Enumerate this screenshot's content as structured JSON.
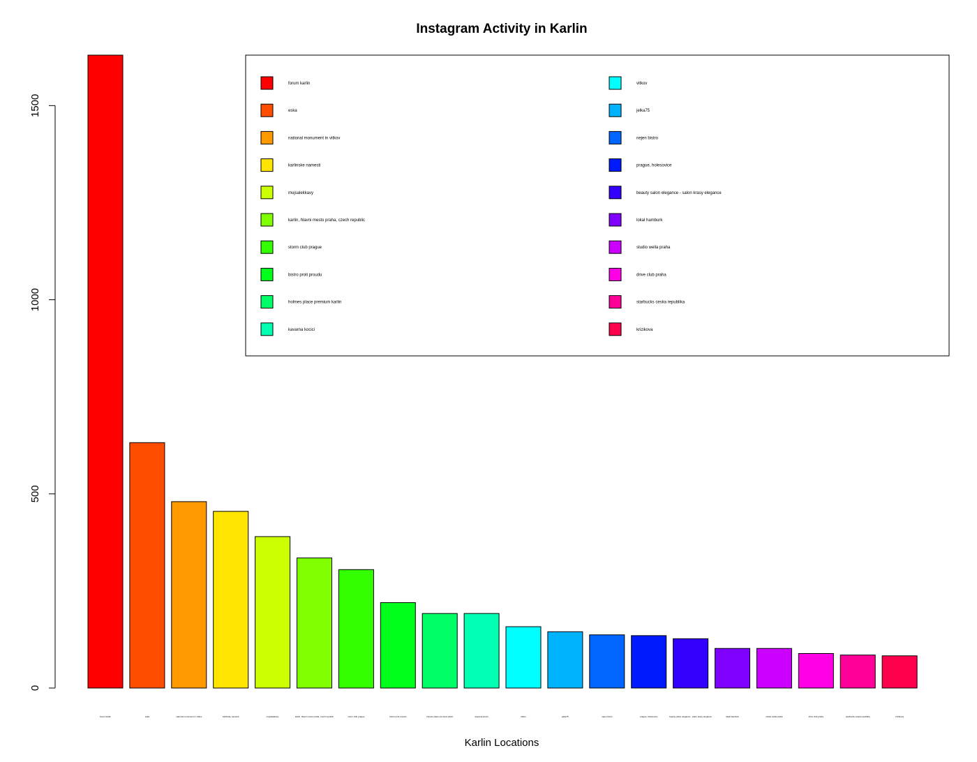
{
  "chart_data": {
    "type": "bar",
    "title": "Instagram Activity in Karlin",
    "xlabel": "Karlin Locations",
    "ylabel": "",
    "ylim": [
      0,
      1630
    ],
    "yticks": [
      0,
      500,
      1000,
      1500
    ],
    "grid": false,
    "legend_position": "top-right",
    "categories": [
      "forum karlin",
      "eska",
      "national monument in vitkov",
      "karlinske namesti",
      "mujsalekkavy",
      "karlin, hlavni mesto praha, czech republic",
      "storm club prague",
      "bistro proti proudu",
      "holmes place premium karlin",
      "kavarna kocici",
      "vitkov",
      "jelka75",
      "nejen bistro",
      "prague, holesovice",
      "beauty salon elegance - salon krasy elegance",
      "lokal hamburk",
      "studio wella praha",
      "drive club praha",
      "starbucks ceska republika",
      "krizikova"
    ],
    "values": [
      1630,
      632,
      480,
      455,
      390,
      335,
      305,
      220,
      192,
      192,
      158,
      145,
      137,
      135,
      127,
      102,
      102,
      89,
      85,
      83
    ],
    "colors": [
      "#FF0000",
      "#FF4D00",
      "#FF9900",
      "#FFE500",
      "#CCFF00",
      "#80FF00",
      "#33FF00",
      "#00FF1A",
      "#00FF66",
      "#00FFB2",
      "#00FFFF",
      "#00B3FF",
      "#0066FF",
      "#001AFF",
      "#3300FF",
      "#7F00FF",
      "#CC00FF",
      "#FF00E6",
      "#FF0099",
      "#FF004D"
    ]
  }
}
